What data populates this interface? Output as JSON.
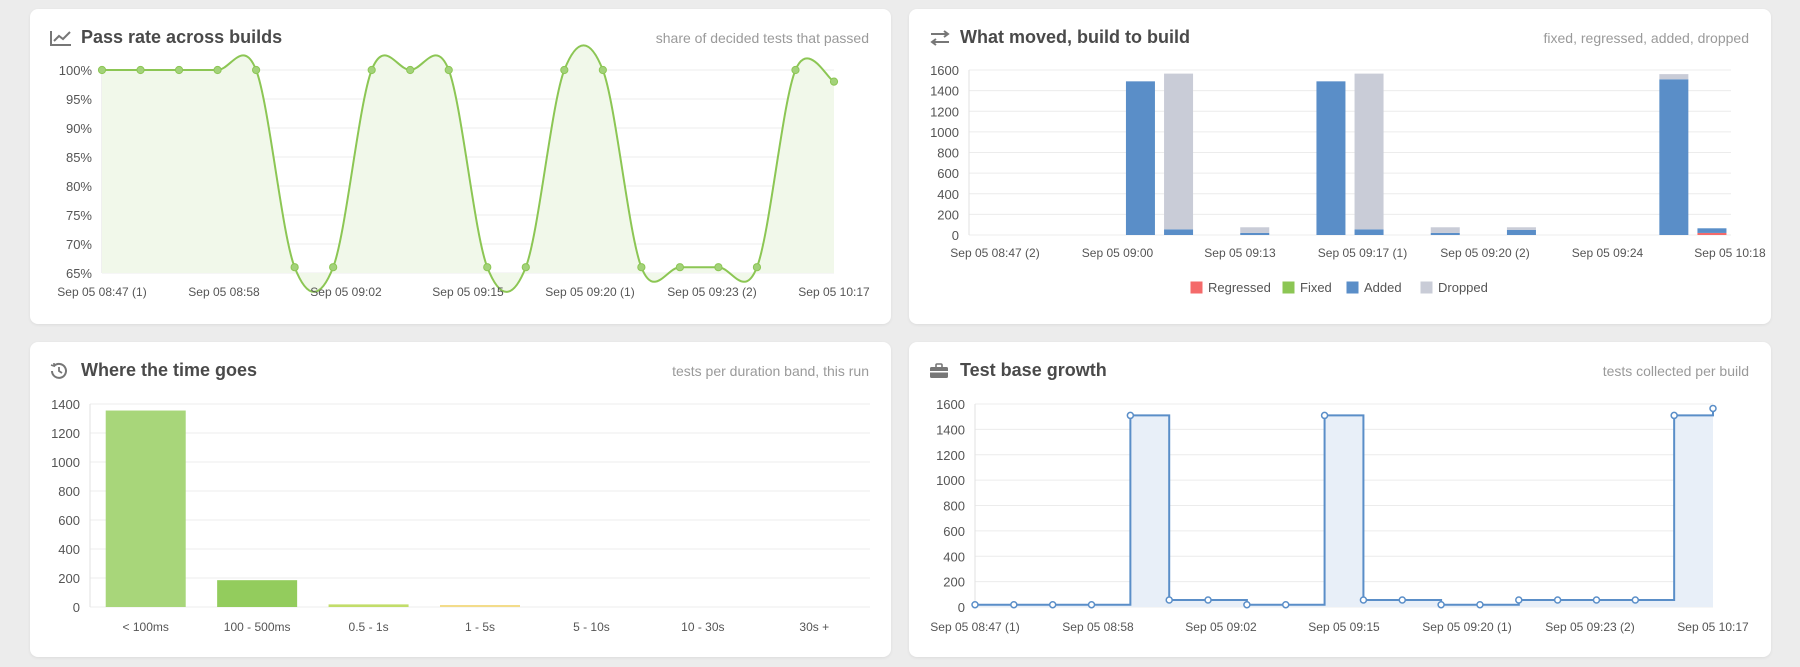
{
  "cards": {
    "pass": {
      "title": "Pass rate across builds",
      "subtitle": "share of decided tests that passed",
      "icon": "line-chart-icon"
    },
    "moved": {
      "title": "What moved, build to build",
      "subtitle": "fixed, regressed, added, dropped",
      "icon": "swap-arrows-icon"
    },
    "time": {
      "title": "Where the time goes",
      "subtitle": "tests per duration band, this run",
      "icon": "history-icon"
    },
    "growth": {
      "title": "Test base growth",
      "subtitle": "tests collected per build",
      "icon": "briefcase-icon"
    }
  },
  "chart_data": [
    {
      "id": "pass",
      "type": "area",
      "title": "Pass rate across builds",
      "x_tick_labels": [
        "Sep 05 08:47 (1)",
        "Sep 05 08:58",
        "Sep 05 09:02",
        "Sep 05 09:15",
        "Sep 05 09:20 (1)",
        "Sep 05 09:23 (2)",
        "Sep 05 10:17"
      ],
      "y_ticks": [
        "65%",
        "70%",
        "75%",
        "80%",
        "85%",
        "90%",
        "95%",
        "100%"
      ],
      "ylim": [
        65,
        100
      ],
      "grid": true,
      "color": "#8cc654",
      "fill": "#f1f8ea",
      "series": [
        {
          "values": [
            100,
            100,
            100,
            100,
            100,
            66,
            66,
            100,
            100,
            100,
            66,
            66,
            100,
            100,
            66,
            66,
            66,
            66,
            100,
            98
          ]
        }
      ]
    },
    {
      "id": "moved",
      "type": "bar",
      "stacked": true,
      "title": "What moved, build to build",
      "x_tick_labels": [
        "Sep 05 08:47 (2)",
        "Sep 05 09:00",
        "Sep 05 09:13",
        "Sep 05 09:17 (1)",
        "Sep 05 09:20 (2)",
        "Sep 05 09:24",
        "Sep 05 10:18"
      ],
      "y_ticks": [
        "0",
        "200",
        "400",
        "600",
        "800",
        "1000",
        "1200",
        "1400",
        "1600"
      ],
      "ylim": [
        0,
        1600
      ],
      "grid": true,
      "legend_position": "bottom",
      "series": [
        {
          "name": "Regressed",
          "color": "#f46a6a",
          "values": [
            0,
            0,
            0,
            0,
            0,
            0,
            0,
            0,
            0,
            0,
            0,
            0,
            0,
            0,
            0,
            0,
            0,
            0,
            0,
            20
          ]
        },
        {
          "name": "Fixed",
          "color": "#8cc654",
          "values": [
            0,
            0,
            0,
            0,
            0,
            0,
            0,
            0,
            0,
            0,
            0,
            0,
            0,
            0,
            0,
            0,
            0,
            0,
            0,
            0
          ]
        },
        {
          "name": "Added",
          "color": "#5a8ec8",
          "values": [
            0,
            0,
            0,
            0,
            1490,
            55,
            0,
            20,
            0,
            1490,
            55,
            0,
            20,
            0,
            50,
            0,
            0,
            0,
            1510,
            45
          ]
        },
        {
          "name": "Dropped",
          "color": "#c9ccd7",
          "values": [
            0,
            0,
            0,
            0,
            0,
            1510,
            0,
            55,
            0,
            0,
            1510,
            0,
            55,
            0,
            25,
            0,
            0,
            0,
            50,
            0
          ]
        }
      ]
    },
    {
      "id": "time",
      "type": "bar",
      "title": "Where the time goes",
      "categories": [
        "< 100ms",
        "100 - 500ms",
        "0.5 - 1s",
        "1 - 5s",
        "5 - 10s",
        "10 - 30s",
        "30s +"
      ],
      "values": [
        1355,
        185,
        18,
        5,
        0,
        0,
        0
      ],
      "colors": [
        "#a8d67a",
        "#93cc5d",
        "#c2dd6a",
        "#f3dc8a",
        "#f2b36d",
        "#ef8d63",
        "#e8664f"
      ],
      "y_ticks": [
        "0",
        "200",
        "400",
        "600",
        "800",
        "1000",
        "1200",
        "1400"
      ],
      "ylim": [
        0,
        1400
      ],
      "grid": true
    },
    {
      "id": "growth",
      "type": "area",
      "step": true,
      "title": "Test base growth",
      "x_tick_labels": [
        "Sep 05 08:47 (1)",
        "Sep 05 08:58",
        "Sep 05 09:02",
        "Sep 05 09:15",
        "Sep 05 09:20 (1)",
        "Sep 05 09:23 (2)",
        "Sep 05 10:17"
      ],
      "y_ticks": [
        "0",
        "200",
        "400",
        "600",
        "800",
        "1000",
        "1200",
        "1400",
        "1600"
      ],
      "ylim": [
        0,
        1600
      ],
      "grid": true,
      "color": "#5a8ec8",
      "fill": "#e8eff8",
      "series": [
        {
          "values": [
            18,
            18,
            18,
            18,
            1510,
            55,
            55,
            18,
            18,
            1510,
            55,
            55,
            18,
            18,
            55,
            55,
            55,
            55,
            1510,
            1565
          ]
        }
      ]
    }
  ]
}
